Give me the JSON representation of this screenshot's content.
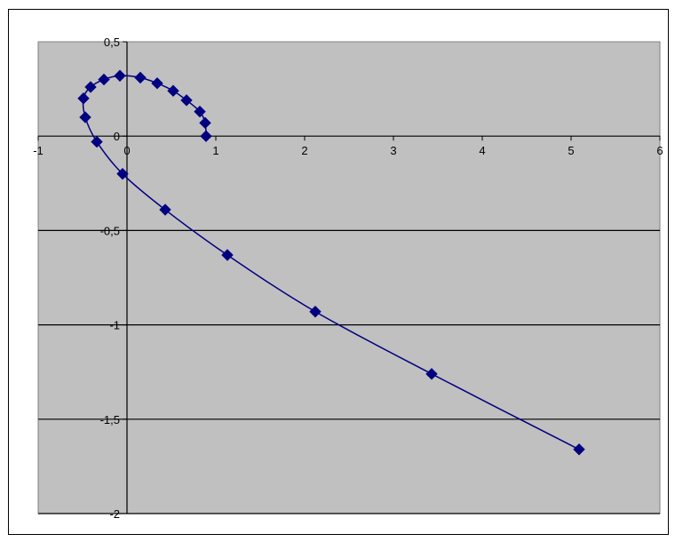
{
  "chart_data": {
    "type": "scatter",
    "title": "",
    "xlabel": "",
    "ylabel": "",
    "xlim": [
      -1,
      6
    ],
    "ylim": [
      -2,
      0.5
    ],
    "x_ticks": [
      -1,
      0,
      1,
      2,
      3,
      4,
      5,
      6
    ],
    "y_ticks": [
      0.5,
      0,
      -0.5,
      -1,
      -1.5,
      -2
    ],
    "x_tick_labels": [
      "-1",
      "0",
      "1",
      "2",
      "3",
      "4",
      "5",
      "6"
    ],
    "y_tick_labels": [
      "0,5",
      "0",
      "-0,5",
      "-1",
      "-1,5",
      "-2"
    ],
    "grid": "horizontal",
    "legend": "none",
    "colors": {
      "plot_area": "#c0c0c0",
      "series": "#000080",
      "gridline": "#000000"
    },
    "series": [
      {
        "marker": "diamond",
        "line": "smooth",
        "points": [
          {
            "x": 0.89,
            "y": 0.0
          },
          {
            "x": 0.88,
            "y": 0.07
          },
          {
            "x": 0.82,
            "y": 0.13
          },
          {
            "x": 0.67,
            "y": 0.19
          },
          {
            "x": 0.52,
            "y": 0.24
          },
          {
            "x": 0.34,
            "y": 0.28
          },
          {
            "x": 0.15,
            "y": 0.31
          },
          {
            "x": -0.08,
            "y": 0.32
          },
          {
            "x": -0.26,
            "y": 0.3
          },
          {
            "x": -0.41,
            "y": 0.26
          },
          {
            "x": -0.49,
            "y": 0.2
          },
          {
            "x": -0.47,
            "y": 0.1
          },
          {
            "x": -0.34,
            "y": -0.03
          },
          {
            "x": -0.05,
            "y": -0.2
          },
          {
            "x": 0.43,
            "y": -0.39
          },
          {
            "x": 1.13,
            "y": -0.63
          },
          {
            "x": 2.12,
            "y": -0.93
          },
          {
            "x": 3.43,
            "y": -1.26
          },
          {
            "x": 5.09,
            "y": -1.66
          }
        ]
      }
    ]
  }
}
